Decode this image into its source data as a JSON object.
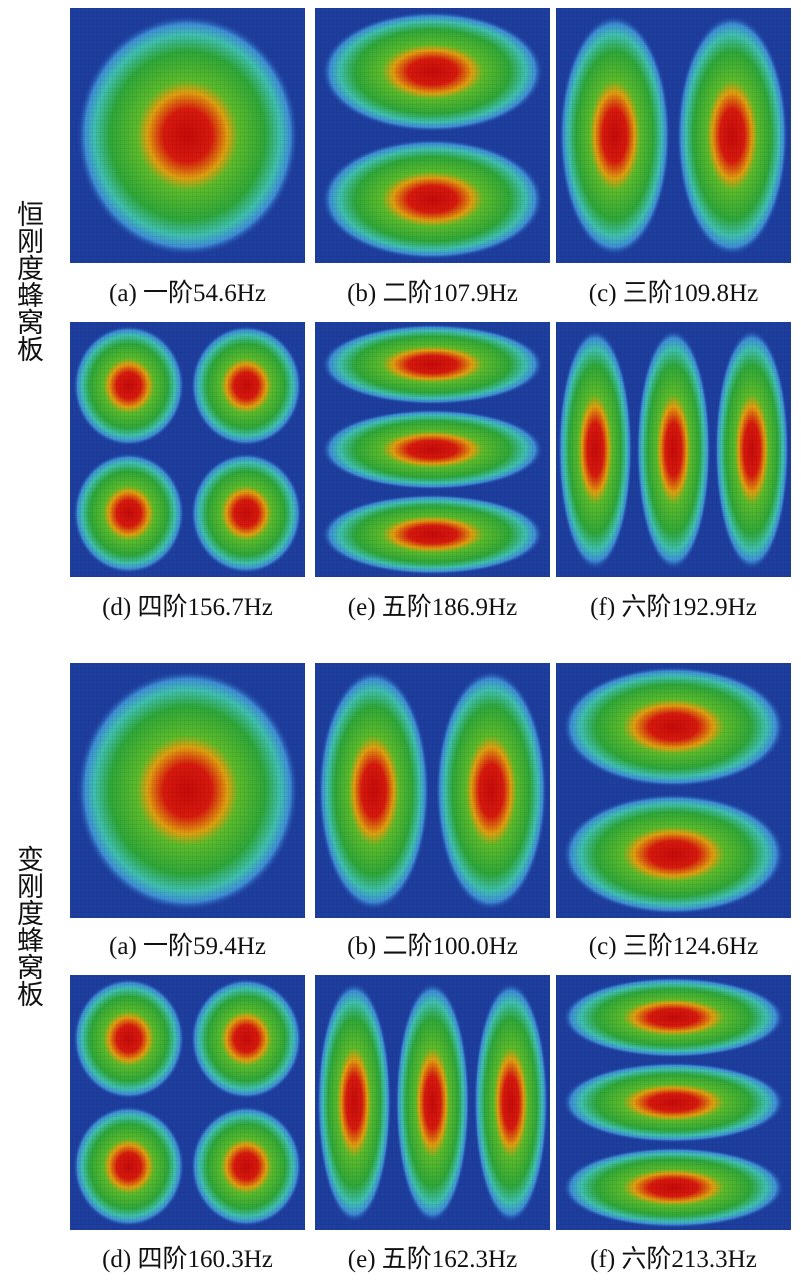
{
  "groups": [
    {
      "label": "恒刚度蜂窝板",
      "panels": [
        "(a) 一阶54.6Hz",
        "(b) 二阶107.9Hz",
        "(c) 三阶109.8Hz",
        "(d) 四阶156.7Hz",
        "(e) 五阶186.9Hz",
        "(f) 六阶192.9Hz"
      ]
    },
    {
      "label": "变刚度蜂窝板",
      "panels": [
        "(a) 一阶59.4Hz",
        "(b) 二阶100.0Hz",
        "(c) 三阶124.6Hz",
        "(d) 四阶160.3Hz",
        "(e) 五阶162.3Hz",
        "(f) 六阶213.3Hz"
      ]
    }
  ]
}
